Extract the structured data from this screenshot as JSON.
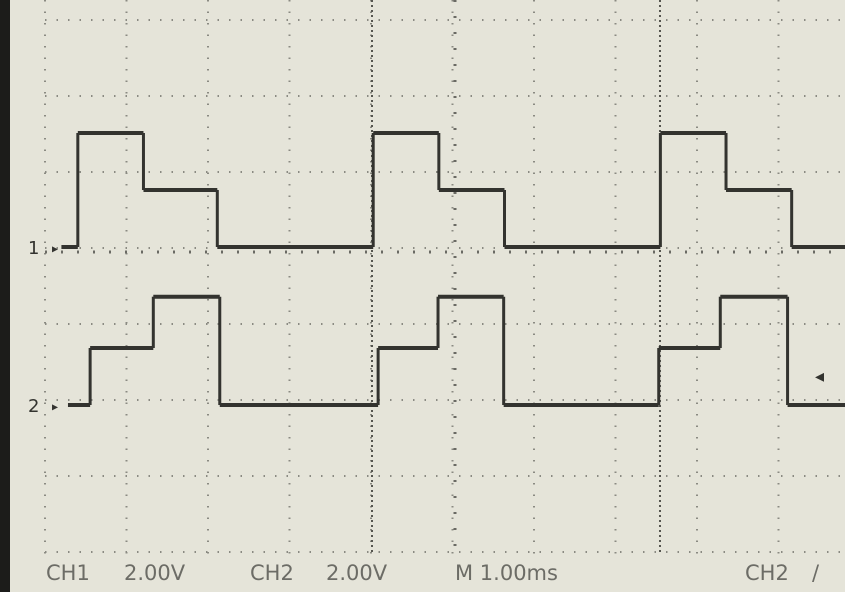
{
  "chart_data": {
    "type": "line",
    "xlim": [
      0,
      9.75
    ],
    "series": [
      {
        "name": "1",
        "color": "#33332f",
        "x": [
          0.2,
          0.4,
          1.2,
          2.1,
          4.0,
          4.8,
          5.6,
          7.5,
          8.3,
          9.1
        ],
        "values": [
          0,
          2,
          1,
          0,
          2,
          1,
          0,
          2,
          1,
          0
        ]
      },
      {
        "name": "2",
        "color": "#33332f",
        "x": [
          0.28,
          0.55,
          1.32,
          2.13,
          4.06,
          4.79,
          5.59,
          7.48,
          8.23,
          9.05
        ],
        "values": [
          0,
          1,
          1.9,
          0,
          1,
          1.9,
          0,
          1,
          1.9,
          0
        ]
      }
    ]
  },
  "status_bar": {
    "ch1": "CH1",
    "ch1_scale": "2.00V",
    "ch2": "CH2",
    "ch2_scale": "2.00V",
    "timebase": "M 1.00ms",
    "trigger_source": "CH2",
    "trigger_slope": "/"
  }
}
